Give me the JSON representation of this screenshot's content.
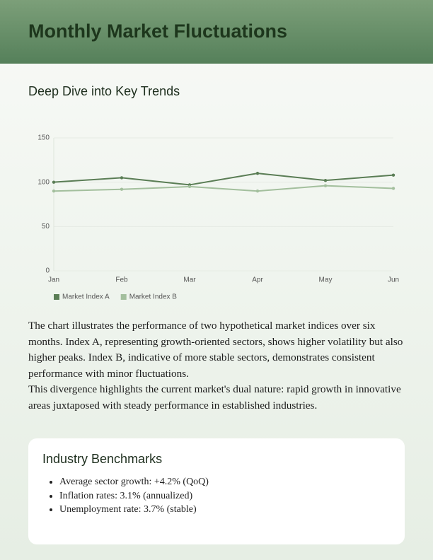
{
  "header": {
    "title": "Monthly Market Fluctuations"
  },
  "section_title": "Deep Dive into Key Trends",
  "chart_data": {
    "type": "line",
    "categories": [
      "Jan",
      "Feb",
      "Mar",
      "Apr",
      "May",
      "Jun"
    ],
    "series": [
      {
        "name": "Market Index A",
        "color": "#5a7d55",
        "values": [
          100,
          105,
          97,
          110,
          102,
          108
        ]
      },
      {
        "name": "Market Index B",
        "color": "#a3bf9d",
        "values": [
          90,
          92,
          95,
          90,
          96,
          93
        ]
      }
    ],
    "ylim": [
      0,
      150
    ],
    "yticks": [
      0,
      50,
      100,
      150
    ],
    "grid": true,
    "legend": "bottom"
  },
  "paragraphs": [
    "The chart illustrates the performance of two hypothetical market indices over six months. Index A, representing growth-oriented sectors, shows higher volatility but also higher peaks. Index B, indicative of more stable sectors, demonstrates consistent performance with minor fluctuations.",
    "This divergence highlights the current market's dual nature: rapid growth in innovative areas juxtaposed with steady performance in established industries."
  ],
  "benchmarks": {
    "title": "Industry Benchmarks",
    "items": [
      "Average sector growth: +4.2% (QoQ)",
      "Inflation rates: 3.1% (annualized)",
      "Unemployment rate: 3.7% (stable)"
    ]
  }
}
